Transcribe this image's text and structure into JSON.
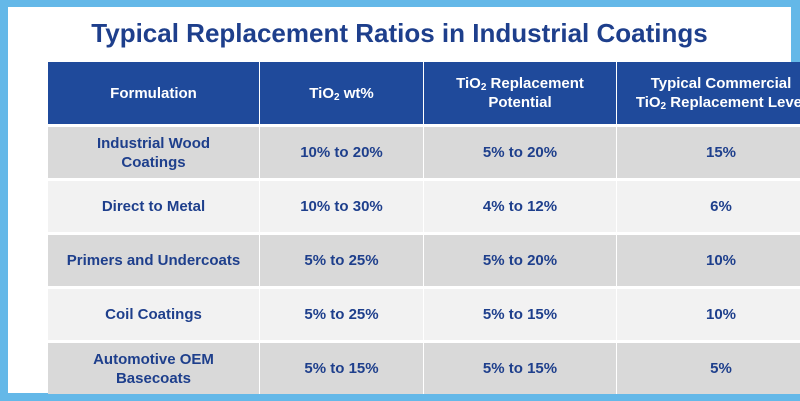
{
  "title": "Typical Replacement Ratios in Industrial Coatings",
  "colors": {
    "header_bg": "#1f4a9b",
    "title_text": "#1e3f8c",
    "border_frame": "#64b8e8",
    "row_dark": "#d9d9d9",
    "row_light": "#f2f2f2"
  },
  "table": {
    "headers": {
      "formulation": "Formulation",
      "tio2_wt": {
        "pre": "TiO",
        "sub": "2",
        "post": " wt%"
      },
      "replacement_potential": {
        "pre": "TiO",
        "sub": "2",
        "post": " Replacement",
        "line2": "Potential"
      },
      "commercial_level": {
        "line1": "Typical Commercial",
        "pre": "TiO",
        "sub": "2",
        "post": " Replacement Level"
      }
    },
    "rows": [
      {
        "formulation": "Industrial Wood Coatings",
        "tio2_wt": "10% to 20%",
        "potential": "5% to 20%",
        "level": "15%"
      },
      {
        "formulation": "Direct to Metal",
        "tio2_wt": "10% to 30%",
        "potential": "4% to 12%",
        "level": "6%"
      },
      {
        "formulation": "Primers and Undercoats",
        "tio2_wt": "5% to 25%",
        "potential": "5% to 20%",
        "level": "10%"
      },
      {
        "formulation": "Coil Coatings",
        "tio2_wt": "5% to 25%",
        "potential": "5% to 15%",
        "level": "10%"
      },
      {
        "formulation": "Automotive OEM Basecoats",
        "tio2_wt": "5% to 15%",
        "potential": "5% to 15%",
        "level": "5%"
      }
    ]
  }
}
